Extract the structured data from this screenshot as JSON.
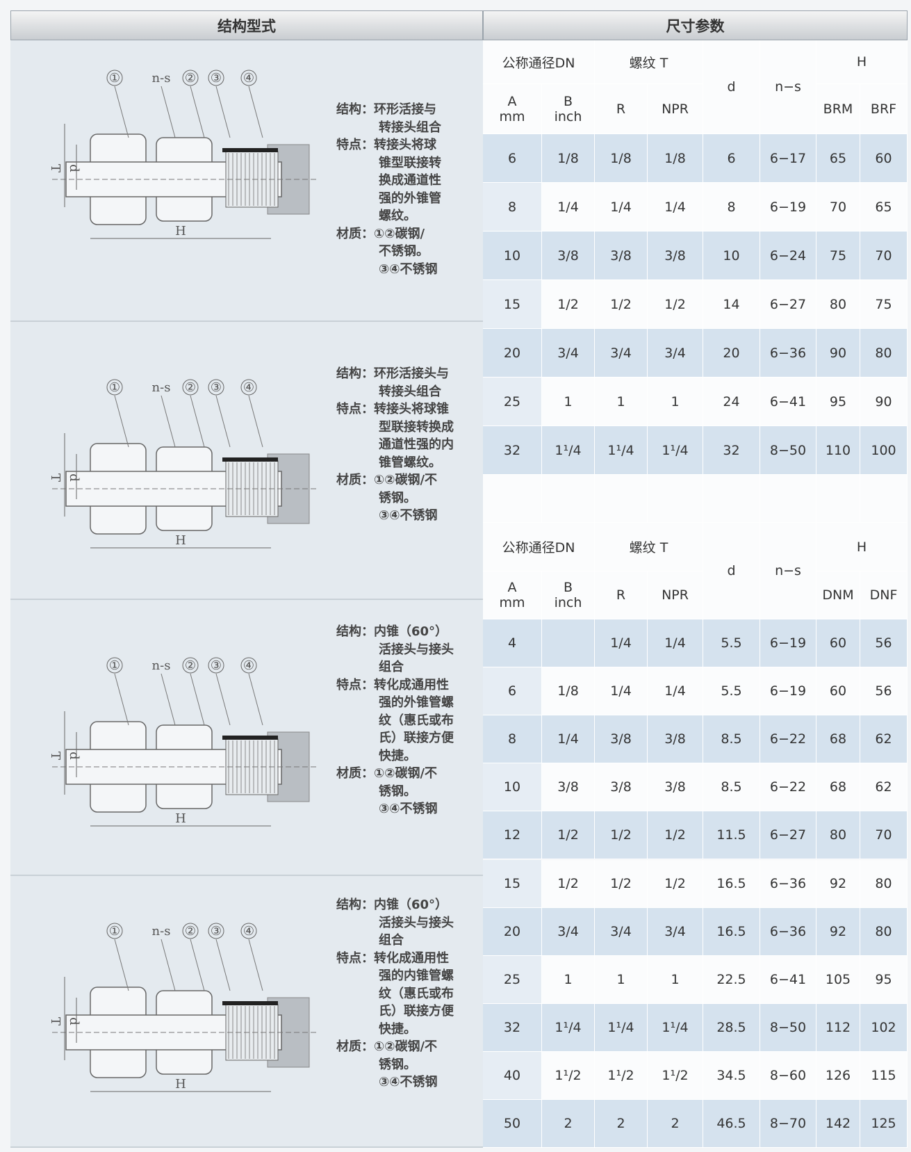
{
  "left": {
    "header": "结构型式",
    "sections": [
      {
        "labels": [
          "①",
          "n-s",
          "②",
          "③",
          "④",
          "T",
          "d",
          "H"
        ],
        "lines": [
          "结构：环形活接与",
          "转接头组合",
          "特点：转接头将球",
          "锥型联接转",
          "换成通道性",
          "强的外锥管",
          "螺纹。",
          "材质：①②碳钢/",
          "不锈钢。",
          "③④不锈钢"
        ]
      },
      {
        "labels": [
          "①",
          "n-s",
          "②",
          "③",
          "④",
          "T",
          "d",
          "H"
        ],
        "lines": [
          "结构：环形活接头与",
          "转接头组合",
          "特点：转接头将球锥",
          "型联接转换成",
          "通道性强的内",
          "锥管螺纹。",
          "材质：①②碳钢/不",
          "锈钢。",
          "③④不锈钢"
        ]
      },
      {
        "labels": [
          "①",
          "n-s",
          "②",
          "③",
          "④",
          "T",
          "d",
          "H"
        ],
        "lines": [
          "结构：内锥（60°）",
          "活接头与接头",
          "组合",
          "特点：转化成通用性",
          "强的外锥管螺",
          "纹（惠氏或布",
          "氏）联接方便",
          "快捷。",
          "材质：①②碳钢/不",
          "锈钢。",
          "③④不锈钢"
        ]
      },
      {
        "labels": [
          "①",
          "n-s",
          "②",
          "③",
          "④",
          "T",
          "d",
          "H"
        ],
        "lines": [
          "结构：内锥（60°）",
          "活接头与接头",
          "组合",
          "特点：转化成通用性",
          "强的内锥管螺",
          "纹（惠氏或布",
          "氏）联接方便",
          "快捷。",
          "材质：①②碳钢/不",
          "锈钢。",
          "③④不锈钢"
        ]
      }
    ]
  },
  "right": {
    "header": "尺寸参数",
    "tables": [
      {
        "group_headers": [
          "公称通径DN",
          "螺纹 T",
          "d",
          "n−s",
          "H"
        ],
        "sub_headers": [
          [
            "A",
            "mm"
          ],
          [
            "B",
            "inch"
          ],
          "R",
          "NPR",
          "BRM",
          "BRF"
        ],
        "rows": [
          [
            "6",
            "1/8",
            "1/8",
            "1/8",
            "6",
            "6−17",
            "65",
            "60"
          ],
          [
            "8",
            "1/4",
            "1/4",
            "1/4",
            "8",
            "6−19",
            "70",
            "65"
          ],
          [
            "10",
            "3/8",
            "3/8",
            "3/8",
            "10",
            "6−24",
            "75",
            "70"
          ],
          [
            "15",
            "1/2",
            "1/2",
            "1/2",
            "14",
            "6−27",
            "80",
            "75"
          ],
          [
            "20",
            "3/4",
            "3/4",
            "3/4",
            "20",
            "6−36",
            "90",
            "80"
          ],
          [
            "25",
            "1",
            "1",
            "1",
            "24",
            "6−41",
            "95",
            "90"
          ],
          [
            "32",
            "1¹/4",
            "1¹/4",
            "1¹/4",
            "32",
            "8−50",
            "110",
            "100"
          ]
        ]
      },
      {
        "group_headers": [
          "公称通径DN",
          "螺纹 T",
          "d",
          "n−s",
          "H"
        ],
        "sub_headers": [
          [
            "A",
            "mm"
          ],
          [
            "B",
            "inch"
          ],
          "R",
          "NPR",
          "DNM",
          "DNF"
        ],
        "rows": [
          [
            "4",
            null,
            "1/4",
            "1/4",
            "5.5",
            "6−19",
            "60",
            "56"
          ],
          [
            "6",
            "1/8",
            "1/4",
            "1/4",
            "5.5",
            "6−19",
            "60",
            "56"
          ],
          [
            "8",
            "1/4",
            "3/8",
            "3/8",
            "8.5",
            "6−22",
            "68",
            "62"
          ],
          [
            "10",
            "3/8",
            "3/8",
            "3/8",
            "8.5",
            "6−22",
            "68",
            "62"
          ],
          [
            "12",
            "1/2",
            "1/2",
            "1/2",
            "11.5",
            "6−27",
            "80",
            "70"
          ],
          [
            "15",
            "1/2",
            "1/2",
            "1/2",
            "16.5",
            "6−36",
            "92",
            "80"
          ],
          [
            "20",
            "3/4",
            "3/4",
            "3/4",
            "16.5",
            "6−36",
            "92",
            "80"
          ],
          [
            "25",
            "1",
            "1",
            "1",
            "22.5",
            "6−41",
            "105",
            "95"
          ],
          [
            "32",
            "1¹/4",
            "1¹/4",
            "1¹/4",
            "28.5",
            "8−50",
            "112",
            "102"
          ],
          [
            "40",
            "1¹/2",
            "1¹/2",
            "1¹/2",
            "34.5",
            "8−60",
            "126",
            "115"
          ],
          [
            "50",
            "2",
            "2",
            "2",
            "46.5",
            "8−70",
            "142",
            "125"
          ]
        ]
      }
    ]
  }
}
